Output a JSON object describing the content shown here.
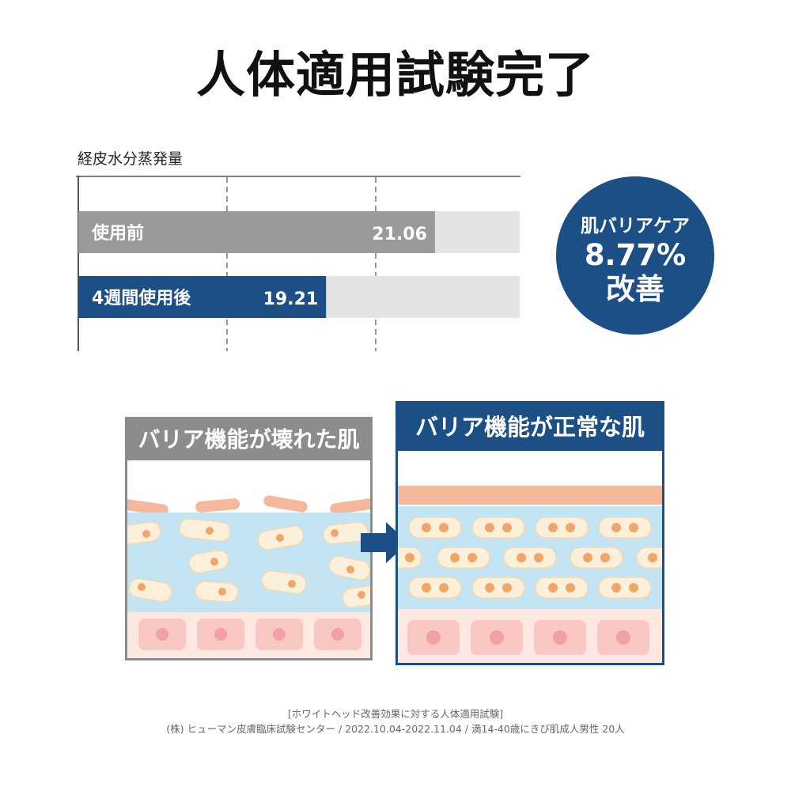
{
  "title": "人体適用試験完了",
  "chart_data": {
    "type": "bar",
    "orientation": "horizontal",
    "ylabel": "経皮水分蒸発量",
    "categories": [
      "使用前",
      "4週間使用後"
    ],
    "values": [
      21.06,
      19.21
    ],
    "value_labels": [
      "21.06",
      "19.21"
    ],
    "xlim": [
      15,
      22.5
    ],
    "grid": "dashed vertical",
    "colors": [
      "#9a9a9a",
      "#1b4f86"
    ],
    "track_color": "#e4e4e4"
  },
  "badge": {
    "line1": "肌バリアケア",
    "line2": "8.77%",
    "line3": "改善"
  },
  "panels": {
    "damaged": {
      "label": "バリア機能が壊れた肌",
      "color": "#8c8c8c"
    },
    "healthy": {
      "label": "バリア機能が正常な肌",
      "color": "#1b4f86"
    }
  },
  "footnote": {
    "line1": "[ホワイトヘッド改善効果に対する人体適用試験]",
    "line2": "(株) ヒューマン皮膚臨床試験センター / 2022.10.04-2022.11.04 / 満14-40歳にきび肌成人男性 20人"
  }
}
